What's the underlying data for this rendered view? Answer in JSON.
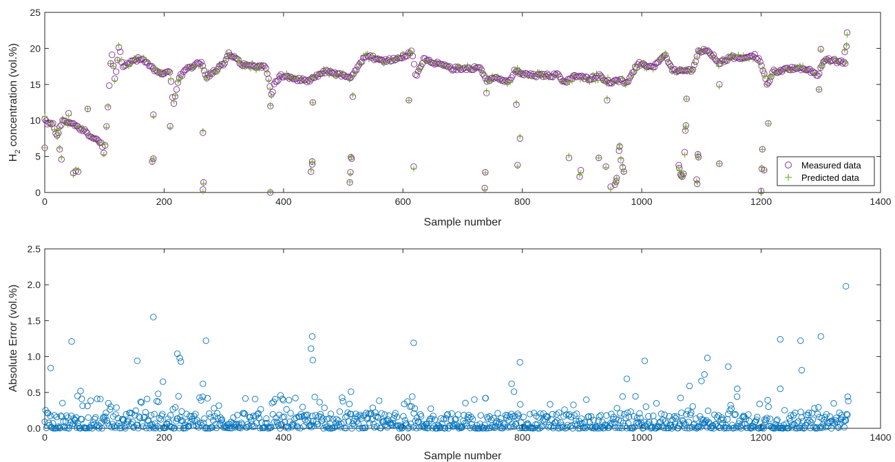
{
  "chart_data": [
    {
      "type": "scatter",
      "title": "",
      "xlabel": "Sample number",
      "ylabel_main": "H",
      "ylabel_sub": "2",
      "ylabel_rest": " concentration (vol.%)",
      "xlim": [
        0,
        1400
      ],
      "ylim": [
        0,
        25
      ],
      "xticks": [
        "0",
        "200",
        "400",
        "600",
        "800",
        "1000",
        "1200",
        "1400"
      ],
      "yticks": [
        "0",
        "5",
        "10",
        "15",
        "20",
        "25"
      ],
      "legend_position": "bottom-right",
      "series": [
        {
          "name": "Measured data",
          "marker": "circle",
          "color": "#7E2F8E"
        },
        {
          "name": "Predicted data",
          "marker": "plus",
          "color": "#77AC30"
        }
      ],
      "segments": [
        [
          0,
          10.1
        ],
        [
          5,
          9.6
        ],
        [
          15,
          9.4
        ],
        [
          20,
          7.8
        ],
        [
          30,
          9.9
        ],
        [
          50,
          9.5
        ],
        [
          65,
          8.6
        ],
        [
          75,
          8.0
        ],
        [
          95,
          6.8
        ],
        [
          100,
          5.0
        ],
        [
          108,
          14.7
        ],
        [
          112,
          19.8
        ],
        [
          118,
          15.5
        ],
        [
          125,
          20.5
        ],
        [
          130,
          17.5
        ],
        [
          145,
          18.2
        ],
        [
          160,
          18.6
        ],
        [
          175,
          17.8
        ],
        [
          190,
          16.5
        ],
        [
          210,
          16.8
        ],
        [
          215,
          12.0
        ],
        [
          225,
          16.0
        ],
        [
          240,
          17.2
        ],
        [
          262,
          18.2
        ],
        [
          270,
          16.0
        ],
        [
          300,
          17.8
        ],
        [
          308,
          19.3
        ],
        [
          330,
          17.8
        ],
        [
          345,
          17.5
        ],
        [
          370,
          17.6
        ],
        [
          380,
          13.5
        ],
        [
          385,
          15.2
        ],
        [
          395,
          16.2
        ],
        [
          420,
          15.8
        ],
        [
          440,
          15.4
        ],
        [
          470,
          16.8
        ],
        [
          500,
          16.2
        ],
        [
          510,
          15.8
        ],
        [
          520,
          17.0
        ],
        [
          540,
          19.2
        ],
        [
          560,
          18.3
        ],
        [
          590,
          18.5
        ],
        [
          605,
          19.0
        ],
        [
          615,
          19.5
        ],
        [
          622,
          16.0
        ],
        [
          635,
          18.6
        ],
        [
          680,
          17.2
        ],
        [
          730,
          17.3
        ],
        [
          740,
          15.5
        ],
        [
          755,
          15.8
        ],
        [
          780,
          15.5
        ],
        [
          787,
          17.0
        ],
        [
          795,
          16.5
        ],
        [
          820,
          16.2
        ],
        [
          860,
          16.3
        ],
        [
          870,
          15.3
        ],
        [
          890,
          16.2
        ],
        [
          910,
          15.8
        ],
        [
          930,
          16.2
        ],
        [
          945,
          15.3
        ],
        [
          965,
          15.5
        ],
        [
          975,
          15.2
        ],
        [
          980,
          16.0
        ],
        [
          995,
          18.0
        ],
        [
          1010,
          17.3
        ],
        [
          1020,
          17.5
        ],
        [
          1040,
          19.0
        ],
        [
          1052,
          17.0
        ],
        [
          1065,
          16.8
        ],
        [
          1085,
          17.0
        ],
        [
          1095,
          19.5
        ],
        [
          1110,
          19.8
        ],
        [
          1130,
          18.0
        ],
        [
          1150,
          18.8
        ],
        [
          1170,
          18.5
        ],
        [
          1190,
          19.0
        ],
        [
          1200,
          18.0
        ],
        [
          1210,
          14.8
        ],
        [
          1220,
          16.8
        ],
        [
          1240,
          17.0
        ],
        [
          1260,
          17.3
        ],
        [
          1280,
          17.0
        ],
        [
          1296,
          16.3
        ],
        [
          1305,
          18.5
        ],
        [
          1320,
          18.3
        ],
        [
          1342,
          18.0
        ]
      ],
      "outliers": [
        [
          0,
          6.2
        ],
        [
          25,
          6.0
        ],
        [
          28,
          4.6
        ],
        [
          40,
          11.0
        ],
        [
          48,
          2.7
        ],
        [
          52,
          3.0
        ],
        [
          56,
          2.9
        ],
        [
          72,
          11.6
        ],
        [
          180,
          4.3
        ],
        [
          182,
          4.7
        ],
        [
          182,
          10.8
        ],
        [
          210,
          9.2
        ],
        [
          265,
          0.4
        ],
        [
          266,
          1.4
        ],
        [
          265,
          8.3
        ],
        [
          378,
          0.0
        ],
        [
          378,
          12.0
        ],
        [
          446,
          2.9
        ],
        [
          448,
          3.9
        ],
        [
          448,
          4.3
        ],
        [
          449,
          12.5
        ],
        [
          511,
          1.4
        ],
        [
          512,
          2.8
        ],
        [
          513,
          4.9
        ],
        [
          514,
          4.7
        ],
        [
          516,
          13.3
        ],
        [
          610,
          12.8
        ],
        [
          618,
          3.6
        ],
        [
          737,
          0.6
        ],
        [
          738,
          2.8
        ],
        [
          740,
          13.8
        ],
        [
          790,
          12.2
        ],
        [
          792,
          3.8
        ],
        [
          796,
          7.5
        ],
        [
          878,
          4.8
        ],
        [
          896,
          2.2
        ],
        [
          898,
          3.1
        ],
        [
          928,
          4.8
        ],
        [
          940,
          3.6
        ],
        [
          942,
          12.8
        ],
        [
          948,
          0.8
        ],
        [
          955,
          1.1
        ],
        [
          957,
          1.5
        ],
        [
          958,
          2.0
        ],
        [
          962,
          5.8
        ],
        [
          963,
          6.4
        ],
        [
          965,
          4.5
        ],
        [
          968,
          3.5
        ],
        [
          970,
          2.9
        ],
        [
          1062,
          3.8
        ],
        [
          1063,
          3.4
        ],
        [
          1065,
          2.5
        ],
        [
          1066,
          2.3
        ],
        [
          1068,
          2.2
        ],
        [
          1070,
          2.6
        ],
        [
          1072,
          5.6
        ],
        [
          1073,
          8.6
        ],
        [
          1074,
          9.3
        ],
        [
          1075,
          13.0
        ],
        [
          1092,
          1.8
        ],
        [
          1093,
          1.2
        ],
        [
          1094,
          5.3
        ],
        [
          1095,
          4.9
        ],
        [
          1130,
          4.0
        ],
        [
          1130,
          15.0
        ],
        [
          1200,
          0.2
        ],
        [
          1201,
          3.3
        ],
        [
          1202,
          6.0
        ],
        [
          1205,
          3.1
        ],
        [
          1212,
          9.6
        ],
        [
          1297,
          14.3
        ],
        [
          1300,
          19.9
        ],
        [
          1340,
          19.5
        ],
        [
          1343,
          20.3
        ],
        [
          1344,
          22.2
        ]
      ]
    },
    {
      "type": "scatter",
      "title": "",
      "xlabel": "Sample number",
      "ylabel": "Absolute Error (vol.%)",
      "xlim": [
        0,
        1400
      ],
      "ylim": [
        0,
        2.5
      ],
      "xticks": [
        "0",
        "200",
        "400",
        "600",
        "800",
        "1000",
        "1200",
        "1400"
      ],
      "yticks": [
        "0.0",
        "0.5",
        "1.0",
        "1.5",
        "2.0",
        "2.5"
      ],
      "series": [
        {
          "name": "",
          "marker": "circle",
          "color": "#0072BD"
        }
      ],
      "outliers": [
        [
          10,
          0.84
        ],
        [
          45,
          1.21
        ],
        [
          55,
          0.45
        ],
        [
          60,
          0.52
        ],
        [
          62,
          0.41
        ],
        [
          155,
          0.94
        ],
        [
          182,
          1.55
        ],
        [
          190,
          0.48
        ],
        [
          198,
          0.65
        ],
        [
          222,
          1.04
        ],
        [
          226,
          0.98
        ],
        [
          228,
          0.93
        ],
        [
          265,
          0.62
        ],
        [
          270,
          1.22
        ],
        [
          395,
          0.46
        ],
        [
          398,
          0.41
        ],
        [
          446,
          1.11
        ],
        [
          448,
          1.28
        ],
        [
          449,
          0.95
        ],
        [
          513,
          0.51
        ],
        [
          618,
          1.19
        ],
        [
          738,
          0.42
        ],
        [
          782,
          0.62
        ],
        [
          786,
          0.51
        ],
        [
          796,
          0.92
        ],
        [
          975,
          0.69
        ],
        [
          1005,
          0.94
        ],
        [
          1080,
          0.59
        ],
        [
          1100,
          0.66
        ],
        [
          1105,
          0.75
        ],
        [
          1110,
          0.98
        ],
        [
          1145,
          0.86
        ],
        [
          1232,
          1.24
        ],
        [
          1266,
          1.22
        ],
        [
          1268,
          0.81
        ],
        [
          1300,
          1.28
        ],
        [
          1342,
          1.98
        ],
        [
          1345,
          0.44
        ],
        [
          1346,
          0.38
        ],
        [
          1232,
          0.55
        ],
        [
          1160,
          0.55
        ]
      ],
      "baseline_noise": "dense points 0.0-0.35 across all samples"
    }
  ]
}
